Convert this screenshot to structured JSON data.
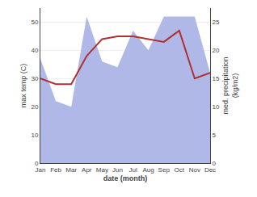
{
  "chart_data": {
    "type": "line",
    "categories": [
      "Jan",
      "Feb",
      "Mar",
      "Apr",
      "May",
      "Jun",
      "Jul",
      "Aug",
      "Sep",
      "Oct",
      "Nov",
      "Dec"
    ],
    "x_label": "date (month)",
    "y_label": "max temp (C)",
    "y2_label": "med. precipitation\n(kg/m2)",
    "series": [
      {
        "type": "line",
        "color": "#b03030",
        "values": [
          30,
          28,
          28,
          38,
          44,
          45,
          45,
          44,
          43,
          47,
          30,
          32
        ]
      },
      {
        "type": "area",
        "color": "#b0b8e8",
        "axis": "y2",
        "values": [
          18.5,
          11,
          10,
          26,
          18,
          17,
          23.5,
          20,
          26,
          26,
          26,
          16
        ]
      }
    ],
    "ylim": [
      0,
      55
    ],
    "yticks": [
      0,
      10,
      20,
      30,
      40,
      50
    ],
    "y2lim": [
      0,
      27.5
    ],
    "y2ticks": [
      0,
      5,
      10,
      15,
      20,
      25
    ],
    "grid": true
  }
}
